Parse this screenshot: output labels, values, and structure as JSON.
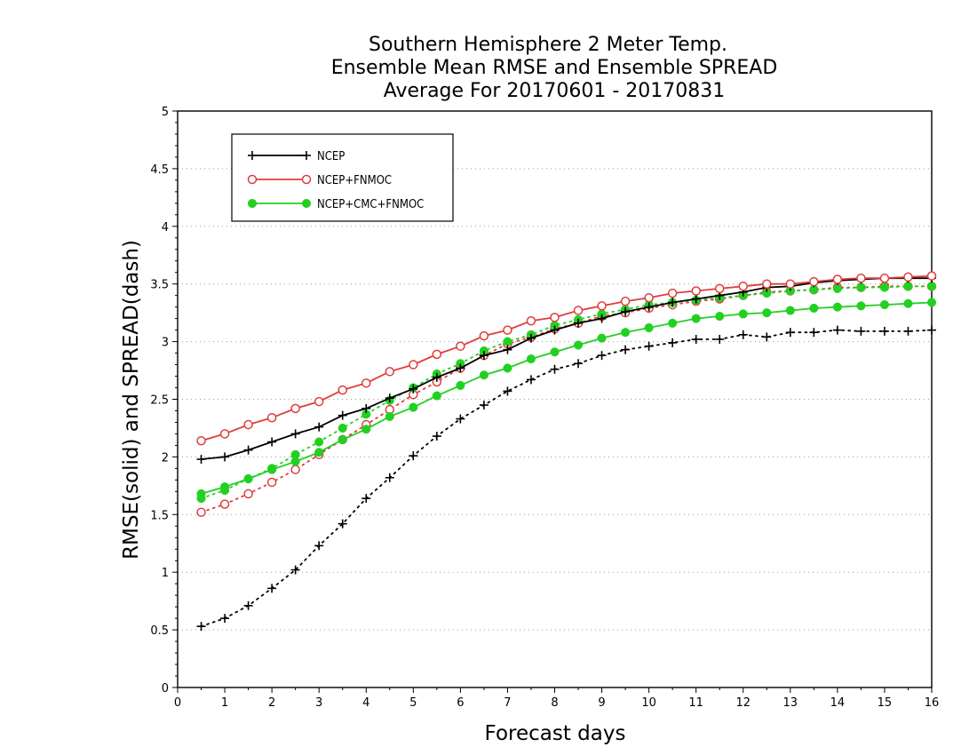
{
  "chart_data": {
    "type": "line",
    "title_lines": [
      "Southern Hemisphere 2 Meter Temp.",
      "Ensemble Mean RMSE and Ensemble SPREAD",
      "Average For 20170601 - 20170831"
    ],
    "xlabel": "Forecast days",
    "ylabel": "RMSE(solid) and SPREAD(dash)",
    "xlim": [
      0,
      16
    ],
    "ylim": [
      0,
      5
    ],
    "xticks": [
      "0",
      "1",
      "2",
      "3",
      "4",
      "5",
      "6",
      "7",
      "8",
      "9",
      "10",
      "11",
      "12",
      "13",
      "14",
      "15",
      "16"
    ],
    "yticks": [
      "0",
      "0.5",
      "1",
      "1.5",
      "2",
      "2.5",
      "3",
      "3.5",
      "4",
      "4.5",
      "5"
    ],
    "grid": "horizontal dotted",
    "legend_position": "top-left",
    "x": [
      0.5,
      1,
      1.5,
      2,
      2.5,
      3,
      3.5,
      4,
      4.5,
      5,
      5.5,
      6,
      6.5,
      7,
      7.5,
      8,
      8.5,
      9,
      9.5,
      10,
      10.5,
      11,
      11.5,
      12,
      12.5,
      13,
      13.5,
      14,
      14.5,
      15,
      15.5,
      16
    ],
    "series": [
      {
        "name": "NCEP",
        "color": "#000000",
        "marker": "plus",
        "rmse": [
          1.98,
          2.0,
          2.06,
          2.13,
          2.2,
          2.26,
          2.36,
          2.42,
          2.51,
          2.59,
          2.69,
          2.77,
          2.88,
          2.93,
          3.03,
          3.1,
          3.16,
          3.2,
          3.26,
          3.3,
          3.34,
          3.37,
          3.4,
          3.43,
          3.47,
          3.48,
          3.51,
          3.53,
          3.54,
          3.55,
          3.55,
          3.55
        ],
        "spread": [
          0.53,
          0.6,
          0.71,
          0.86,
          1.02,
          1.23,
          1.42,
          1.64,
          1.82,
          2.01,
          2.18,
          2.33,
          2.45,
          2.57,
          2.67,
          2.76,
          2.81,
          2.88,
          2.93,
          2.96,
          2.99,
          3.02,
          3.02,
          3.06,
          3.04,
          3.08,
          3.08,
          3.1,
          3.09,
          3.09,
          3.09,
          3.1
        ]
      },
      {
        "name": "NCEP+FNMOC",
        "color": "#e03c3c",
        "marker": "open-circle",
        "rmse": [
          2.14,
          2.2,
          2.28,
          2.34,
          2.42,
          2.48,
          2.58,
          2.64,
          2.74,
          2.8,
          2.89,
          2.96,
          3.05,
          3.1,
          3.18,
          3.21,
          3.27,
          3.31,
          3.35,
          3.38,
          3.42,
          3.44,
          3.46,
          3.48,
          3.5,
          3.5,
          3.52,
          3.54,
          3.55,
          3.55,
          3.56,
          3.57
        ],
        "spread": [
          1.52,
          1.59,
          1.68,
          1.78,
          1.89,
          2.02,
          2.15,
          2.28,
          2.41,
          2.54,
          2.65,
          2.77,
          2.88,
          2.98,
          3.04,
          3.11,
          3.16,
          3.22,
          3.25,
          3.29,
          3.32,
          3.35,
          3.37,
          3.4,
          3.43,
          3.44,
          3.45,
          3.47,
          3.47,
          3.48,
          3.48,
          3.48
        ]
      },
      {
        "name": "NCEP+CMC+FNMOC",
        "color": "#22d022",
        "marker": "filled-circle",
        "rmse": [
          1.68,
          1.74,
          1.81,
          1.89,
          1.96,
          2.04,
          2.15,
          2.24,
          2.35,
          2.43,
          2.53,
          2.62,
          2.71,
          2.77,
          2.85,
          2.91,
          2.97,
          3.03,
          3.08,
          3.12,
          3.16,
          3.2,
          3.22,
          3.24,
          3.25,
          3.27,
          3.29,
          3.3,
          3.31,
          3.32,
          3.33,
          3.34
        ],
        "spread": [
          1.64,
          1.71,
          1.81,
          1.9,
          2.02,
          2.13,
          2.25,
          2.37,
          2.49,
          2.6,
          2.72,
          2.81,
          2.92,
          3.0,
          3.06,
          3.14,
          3.19,
          3.24,
          3.28,
          3.32,
          3.34,
          3.36,
          3.38,
          3.4,
          3.42,
          3.44,
          3.45,
          3.46,
          3.47,
          3.47,
          3.48,
          3.48
        ]
      }
    ]
  }
}
